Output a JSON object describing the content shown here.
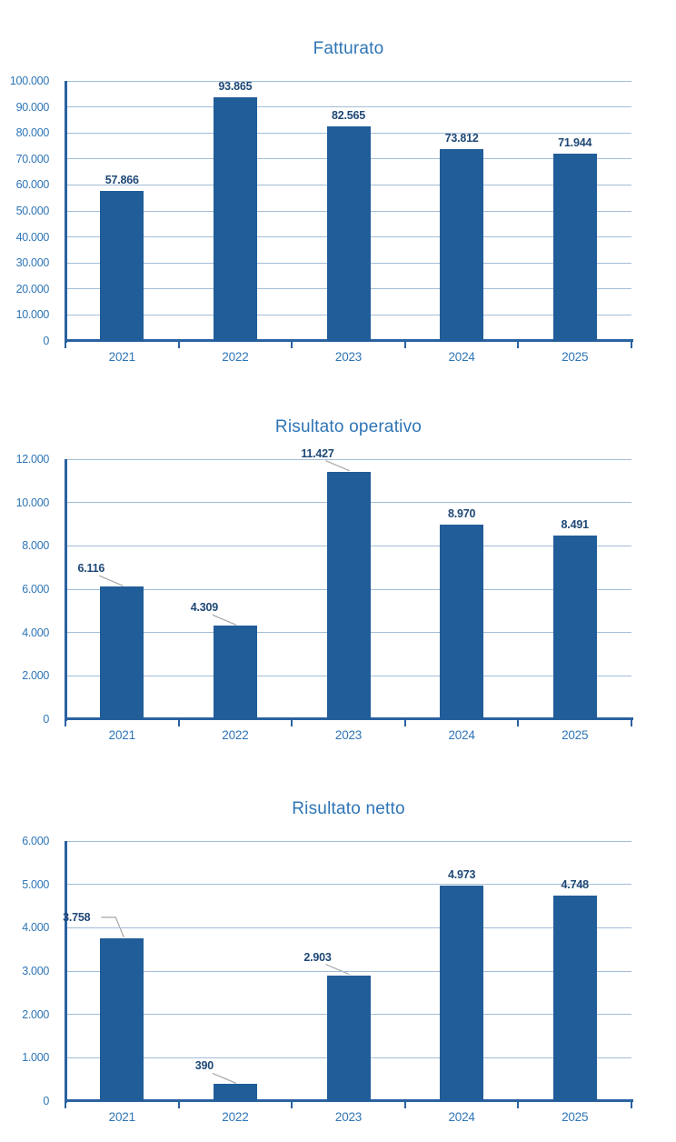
{
  "page": {
    "background": "#ffffff"
  },
  "colors": {
    "bar": "#215d99",
    "title": "#2e75b6",
    "axis_labels": "#2e75b6",
    "value_labels": "#1e4876",
    "gridline": "#a3bdd6",
    "axis_line": "#2b62a1",
    "leader_line": "#a6a6a6"
  },
  "chart_data": [
    {
      "type": "bar",
      "title": "Fatturato",
      "categories": [
        "2021",
        "2022",
        "2023",
        "2024",
        "2025"
      ],
      "values": [
        57866,
        93865,
        82565,
        73812,
        71944
      ],
      "value_labels": [
        "57.866",
        "93.865",
        "82.565",
        "73.812",
        "71.944"
      ],
      "ylim": [
        0,
        100000
      ],
      "ytick_step": 10000,
      "ytick_labels": [
        "0",
        "10.000",
        "20.000",
        "30.000",
        "40.000",
        "50.000",
        "60.000",
        "70.000",
        "80.000",
        "90.000",
        "100.000"
      ],
      "grid": true,
      "legend": "none",
      "label_placements": [
        "center",
        "center",
        "center",
        "center",
        "center"
      ]
    },
    {
      "type": "bar",
      "title": "Risultato operativo",
      "categories": [
        "2021",
        "2022",
        "2023",
        "2024",
        "2025"
      ],
      "values": [
        6116,
        4309,
        11427,
        8970,
        8491
      ],
      "value_labels": [
        "6.116",
        "4.309",
        "11.427",
        "8.970",
        "8.491"
      ],
      "ylim": [
        0,
        12000
      ],
      "ytick_step": 2000,
      "ytick_labels": [
        "0",
        "2.000",
        "4.000",
        "6.000",
        "8.000",
        "10.000",
        "12.000"
      ],
      "grid": true,
      "legend": "none",
      "label_placements": [
        "leader",
        "leader",
        "leader",
        "center",
        "center"
      ]
    },
    {
      "type": "bar",
      "title": "Risultato netto",
      "categories": [
        "2021",
        "2022",
        "2023",
        "2024",
        "2025"
      ],
      "values": [
        3758,
        390,
        2903,
        4973,
        4748
      ],
      "value_labels": [
        "3.758",
        "390",
        "2.903",
        "4.973",
        "4.748"
      ],
      "ylim": [
        0,
        6000
      ],
      "ytick_step": 1000,
      "ytick_labels": [
        "0",
        "1.000",
        "2.000",
        "3.000",
        "4.000",
        "5.000",
        "6.000"
      ],
      "grid": true,
      "legend": "none",
      "label_placements": [
        "leader-elbow",
        "leader",
        "leader",
        "center",
        "center"
      ]
    }
  ]
}
